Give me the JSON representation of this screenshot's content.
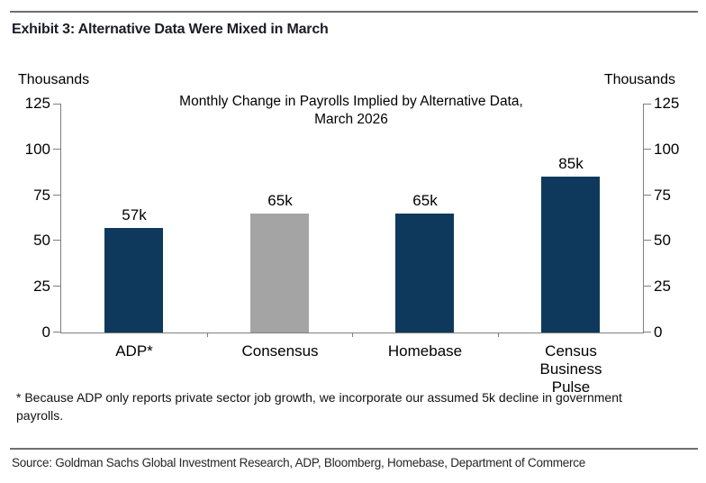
{
  "header": {
    "exhibit_title": "Exhibit 3: Alternative Data Were Mixed in March"
  },
  "chart_data": {
    "type": "bar",
    "title": "Monthly Change in Payrolls Implied by Alternative Data, March 2026",
    "title_lines": [
      "Monthly Change in Payrolls Implied by Alternative Data,",
      "March 2026"
    ],
    "unit_left": "Thousands",
    "unit_right": "Thousands",
    "categories": [
      "ADP*",
      "Consensus",
      "Homebase",
      "Census Business Pulse"
    ],
    "values": [
      57,
      65,
      65,
      85
    ],
    "value_labels": [
      "57k",
      "65k",
      "65k",
      "85k"
    ],
    "bar_colors": [
      "#0e395c",
      "#a4a4a4",
      "#0e395c",
      "#0e395c"
    ],
    "navy_color": "#0e395c",
    "gray_color": "#a4a4a4",
    "axis_color": "#7f7f7f",
    "yticks": [
      125,
      100,
      75,
      50,
      25,
      0
    ],
    "ylim": [
      0,
      125
    ],
    "grid": false,
    "legend": "none",
    "axes": "dual-y"
  },
  "footnote": {
    "lines": [
      "* Because ADP only reports private sector job growth, we incorporate our assumed 5k decline in government",
      "payrolls."
    ]
  },
  "footer": {
    "source": "Source: Goldman Sachs Global Investment Research, ADP, Bloomberg, Homebase, Department of Commerce"
  }
}
